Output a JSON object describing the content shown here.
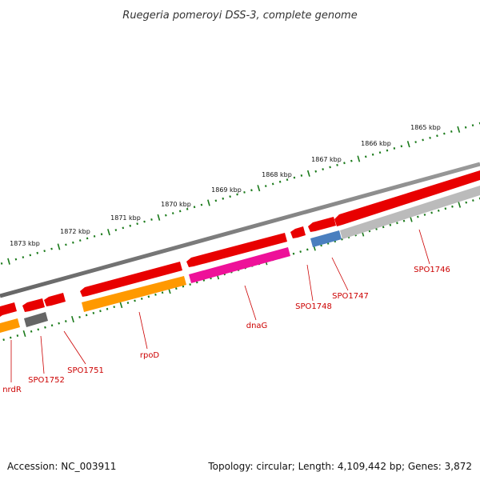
{
  "title": "Ruegeria pomeroyi DSS-3, complete genome",
  "footer": {
    "accession": "Accession: NC_003911",
    "topology": "Topology: circular; Length: 4,109,442 bp; Genes: 3,872"
  },
  "ruler": {
    "ticks": [
      "1865 kbp",
      "1866 kbp",
      "1867 kbp",
      "1868 kbp",
      "1869 kbp",
      "1870 kbp",
      "1871 kbp",
      "1872 kbp",
      "1873 kbp"
    ]
  },
  "genes": [
    {
      "name": "nrdR"
    },
    {
      "name": "SPO1752"
    },
    {
      "name": "SPO1751"
    },
    {
      "name": "rpoD"
    },
    {
      "name": "dnaG"
    },
    {
      "name": "SPO1748"
    },
    {
      "name": "SPO1747"
    },
    {
      "name": "SPO1746"
    }
  ],
  "colors": {
    "backbone": "#7d7d7d",
    "forward_gene": "#e80000",
    "rpoD": "#ff9900",
    "nrdR": "#ff9900",
    "dnaG": "#ee1199",
    "SPO1752": "#666666",
    "SPO1747": "#4a7fbf",
    "SPO1746": "#bbbbbb",
    "ruler_tick": "#1a7a1a",
    "label": "#cc0000"
  }
}
